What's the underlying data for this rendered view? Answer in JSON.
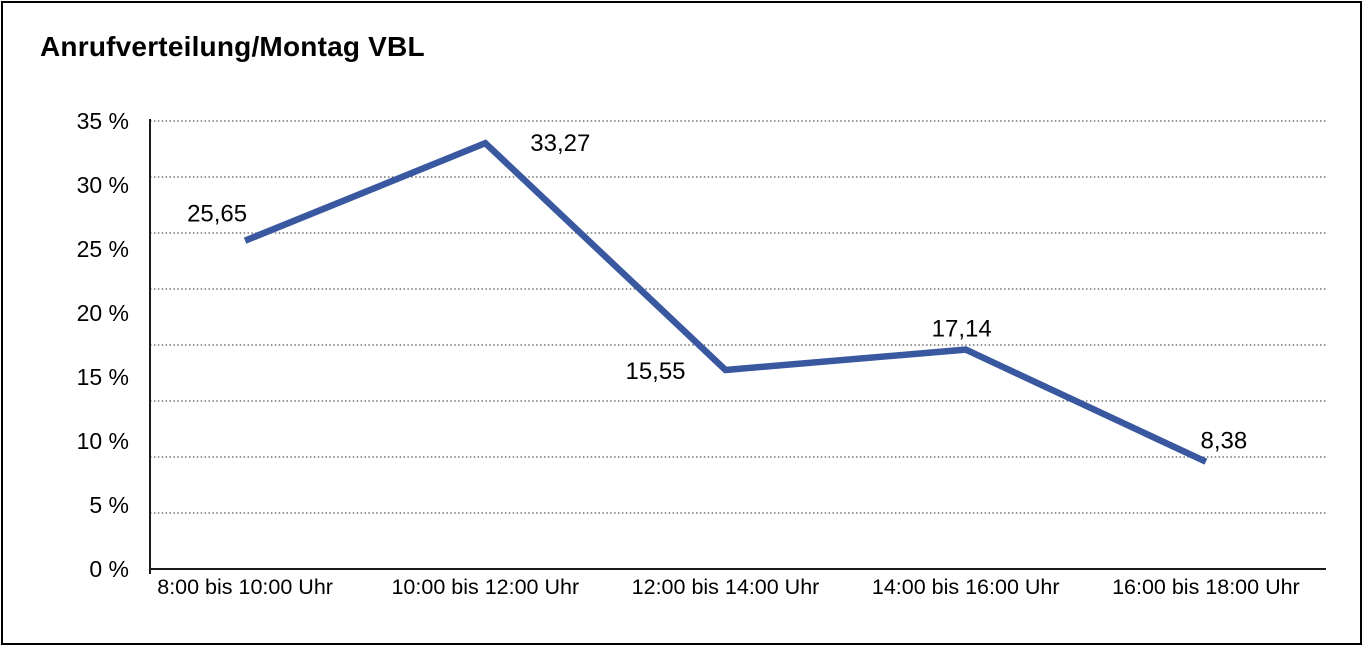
{
  "title": "Anrufverteilung/Montag VBL",
  "chart_data": {
    "type": "line",
    "title": "Anrufverteilung/Montag VBL",
    "categories": [
      "8:00 bis 10:00 Uhr",
      "10:00 bis 12:00 Uhr",
      "12:00 bis 14:00 Uhr",
      "14:00 bis 16:00 Uhr",
      "16:00 bis 18:00 Uhr"
    ],
    "values": [
      25.65,
      33.27,
      15.55,
      17.14,
      8.38
    ],
    "point_labels": [
      "25,65",
      "33,27",
      "15,55",
      "17,14",
      "8,38"
    ],
    "y_ticks": {
      "values": [
        35,
        30,
        25,
        20,
        15,
        10,
        5,
        0
      ],
      "labels": [
        "35 %",
        "30 %",
        "25 %",
        "20 %",
        "15 %",
        "10 %",
        "5 %",
        "0 %"
      ]
    },
    "ylim": [
      0,
      35
    ],
    "xlabel": "",
    "ylabel": "",
    "grid": "horizontal-dotted, 8 divisions",
    "legend": "none",
    "line_color": "#3A58A0",
    "axis_color": "#1a1a1a",
    "gridline_color": "#555555",
    "text_color": "#000000",
    "background_color": "#ffffff",
    "border_color": "#000000"
  }
}
